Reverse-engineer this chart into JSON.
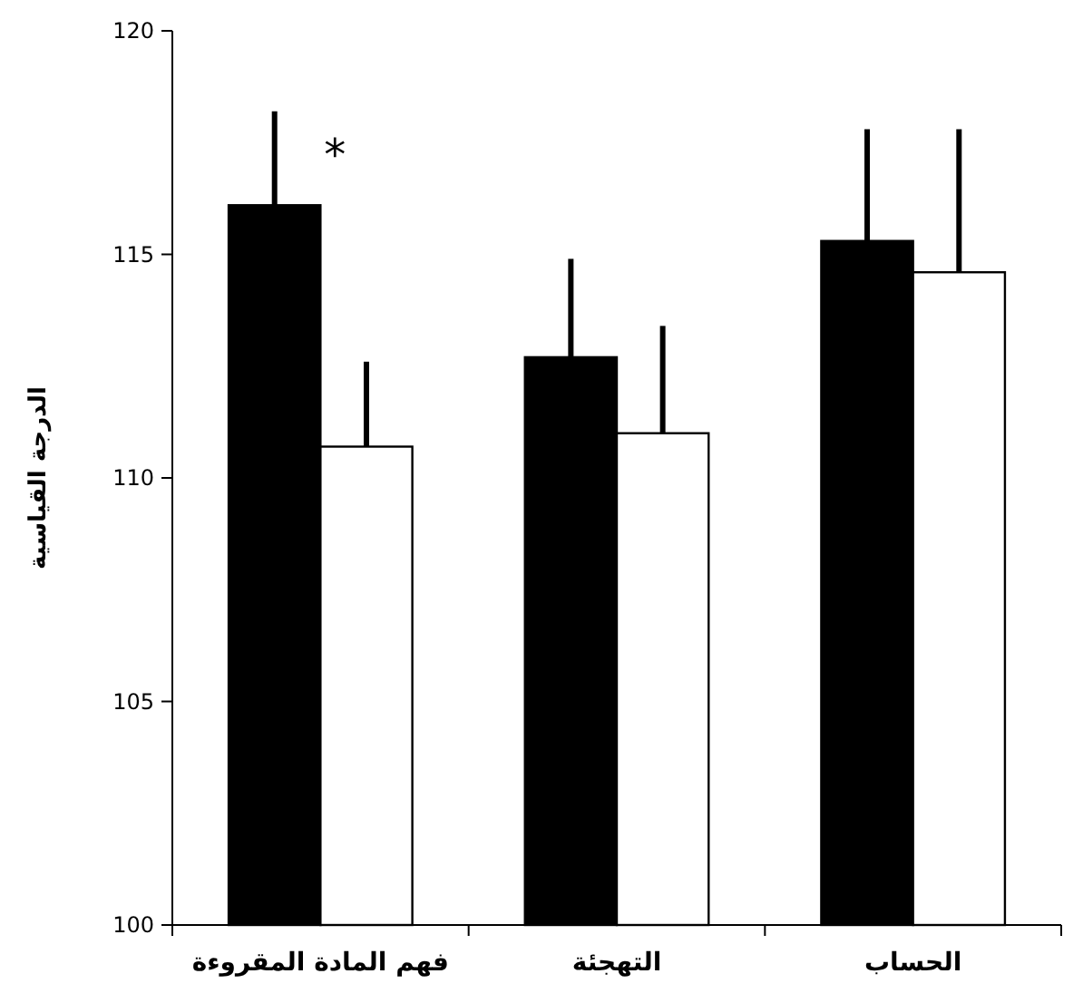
{
  "chart_data": {
    "type": "bar",
    "ylabel": "الدرجة القياسية",
    "categories": [
      "فهم المادة المقروءة",
      "التهجئة",
      "الحساب"
    ],
    "series": [
      {
        "color": "#000000",
        "values": [
          116.1,
          112.7,
          115.3
        ],
        "errors": [
          [
            116.1,
            118.2
          ],
          [
            112.7,
            114.9
          ],
          [
            115.3,
            117.8
          ]
        ]
      },
      {
        "color": "#ffffff",
        "values": [
          110.7,
          111.0,
          114.6
        ],
        "errors": [
          [
            110.7,
            112.6
          ],
          [
            111.0,
            113.4
          ],
          [
            114.6,
            117.8
          ]
        ]
      }
    ],
    "ylim": [
      100,
      120
    ],
    "yticks": [
      100,
      105,
      110,
      115,
      120
    ],
    "annotations": [
      "*"
    ],
    "grid": false
  }
}
